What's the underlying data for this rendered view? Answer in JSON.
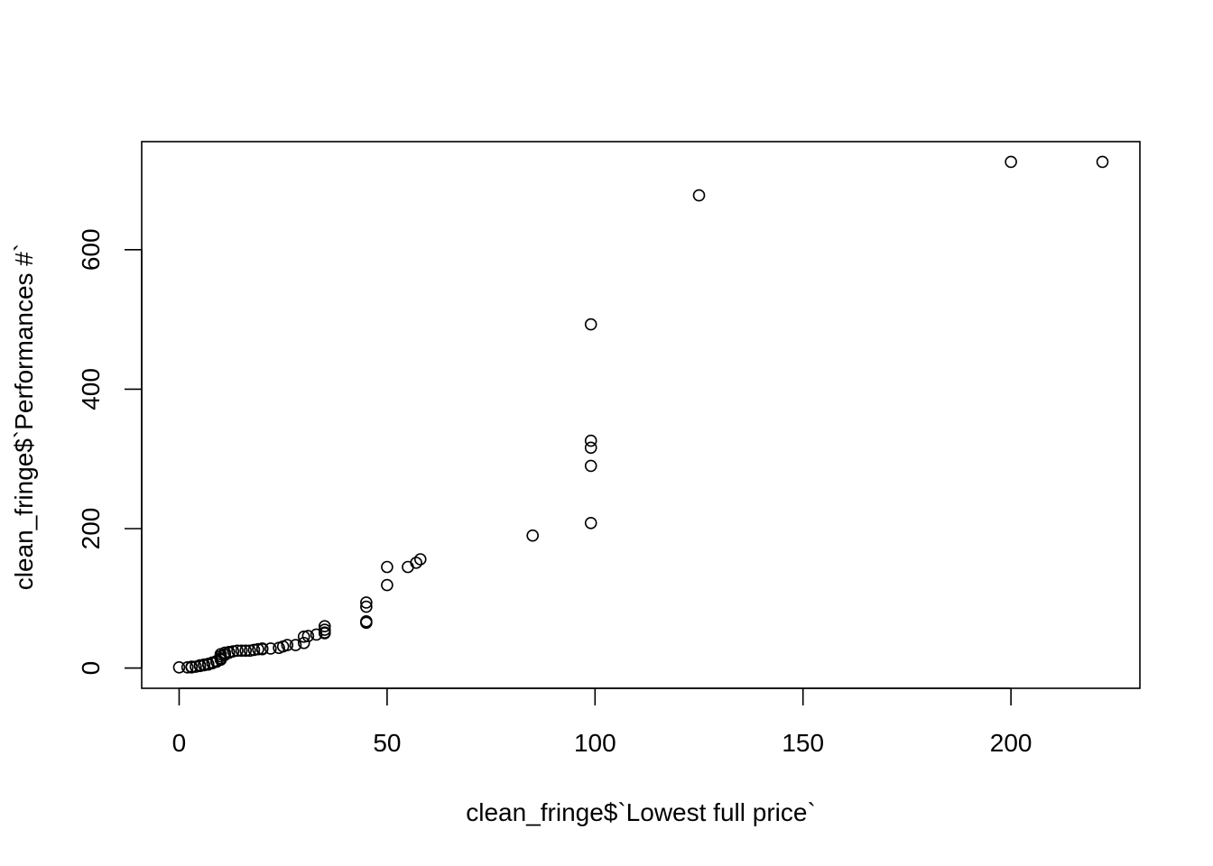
{
  "chart_data": {
    "type": "scatter",
    "title": "",
    "xlabel": "clean_fringe$`Lowest full price`",
    "ylabel": "clean_fringe$`Performances #`",
    "xlim": [
      -9,
      231
    ],
    "ylim": [
      -29,
      755
    ],
    "x_ticks": [
      0,
      50,
      100,
      150,
      200
    ],
    "y_ticks": [
      0,
      200,
      400,
      600
    ],
    "grid": false,
    "legend": "none",
    "marker": "open-circle",
    "series": [
      {
        "points": [
          [
            0,
            1
          ],
          [
            2,
            1
          ],
          [
            3,
            1
          ],
          [
            3,
            2
          ],
          [
            4,
            2
          ],
          [
            5,
            3
          ],
          [
            5,
            4
          ],
          [
            6,
            4
          ],
          [
            6,
            5
          ],
          [
            7,
            5
          ],
          [
            7,
            6
          ],
          [
            8,
            7
          ],
          [
            8,
            8
          ],
          [
            9,
            9
          ],
          [
            9,
            10
          ],
          [
            10,
            12
          ],
          [
            10,
            14
          ],
          [
            10,
            17
          ],
          [
            10,
            20
          ],
          [
            11,
            19
          ],
          [
            11,
            22
          ],
          [
            12,
            22
          ],
          [
            12,
            23
          ],
          [
            13,
            24
          ],
          [
            14,
            25
          ],
          [
            15,
            25
          ],
          [
            16,
            25
          ],
          [
            17,
            25
          ],
          [
            18,
            26
          ],
          [
            19,
            27
          ],
          [
            20,
            27
          ],
          [
            20,
            28
          ],
          [
            22,
            28
          ],
          [
            24,
            29
          ],
          [
            25,
            31
          ],
          [
            26,
            33
          ],
          [
            28,
            33
          ],
          [
            30,
            36
          ],
          [
            30,
            45
          ],
          [
            31,
            46
          ],
          [
            33,
            48
          ],
          [
            35,
            50
          ],
          [
            35,
            51
          ],
          [
            35,
            55
          ],
          [
            35,
            60
          ],
          [
            45,
            65
          ],
          [
            45,
            67
          ],
          [
            45,
            88
          ],
          [
            45,
            94
          ],
          [
            50,
            119
          ],
          [
            50,
            145
          ],
          [
            55,
            145
          ],
          [
            57,
            151
          ],
          [
            58,
            156
          ],
          [
            85,
            190
          ],
          [
            99,
            208
          ],
          [
            99,
            290
          ],
          [
            99,
            316
          ],
          [
            99,
            326
          ],
          [
            99,
            493
          ],
          [
            125,
            678
          ],
          [
            200,
            726
          ],
          [
            222,
            726
          ]
        ]
      }
    ]
  }
}
